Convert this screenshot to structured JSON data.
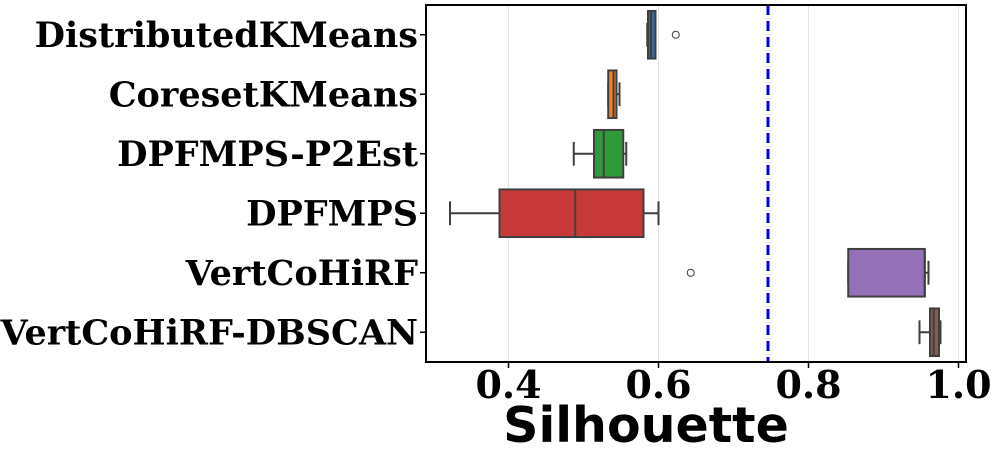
{
  "chart_data": {
    "type": "boxplot",
    "orientation": "horizontal",
    "title": "",
    "xlabel": "Silhouette",
    "ylabel": "",
    "xlim": [
      0.29,
      1.01
    ],
    "xticks": [
      0.4,
      0.6,
      0.8,
      1.0
    ],
    "xtick_labels": [
      "0.4",
      "0.6",
      "0.8",
      "1.0"
    ],
    "grid": "vertical",
    "reference_line": {
      "x": 0.746,
      "color": "#0000ee",
      "style": "dashed"
    },
    "categories": [
      "DistributedKMeans",
      "CoresetKMeans",
      "DPFMPS-P2Est",
      "DPFMPS",
      "VertCoHiRF",
      "VertCoHiRF-DBSCAN"
    ],
    "boxes": [
      {
        "name": "DistributedKMeans",
        "color": "#3a6a9c",
        "whisker_low": 0.585,
        "q1": 0.586,
        "median": 0.59,
        "q3": 0.596,
        "whisker_high": 0.596,
        "outliers": [
          0.623
        ]
      },
      {
        "name": "CoresetKMeans",
        "color": "#f0832a",
        "whisker_low": 0.533,
        "q1": 0.533,
        "median": 0.54,
        "q3": 0.544,
        "whisker_high": 0.548,
        "outliers": []
      },
      {
        "name": "DPFMPS-P2Est",
        "color": "#2f9a3a",
        "whisker_low": 0.487,
        "q1": 0.514,
        "median": 0.527,
        "q3": 0.553,
        "whisker_high": 0.557,
        "outliers": []
      },
      {
        "name": "DPFMPS",
        "color": "#c83a3a",
        "whisker_low": 0.322,
        "q1": 0.388,
        "median": 0.489,
        "q3": 0.58,
        "whisker_high": 0.6,
        "outliers": []
      },
      {
        "name": "VertCoHiRF",
        "color": "#9370b8",
        "whisker_low": 0.853,
        "q1": 0.853,
        "median": 0.955,
        "q3": 0.955,
        "whisker_high": 0.96,
        "outliers": [
          0.643
        ]
      },
      {
        "name": "VertCoHiRF-DBSCAN",
        "color": "#8b5a50",
        "whisker_low": 0.948,
        "q1": 0.962,
        "median": 0.967,
        "q3": 0.974,
        "whisker_high": 0.976,
        "outliers": []
      }
    ]
  }
}
